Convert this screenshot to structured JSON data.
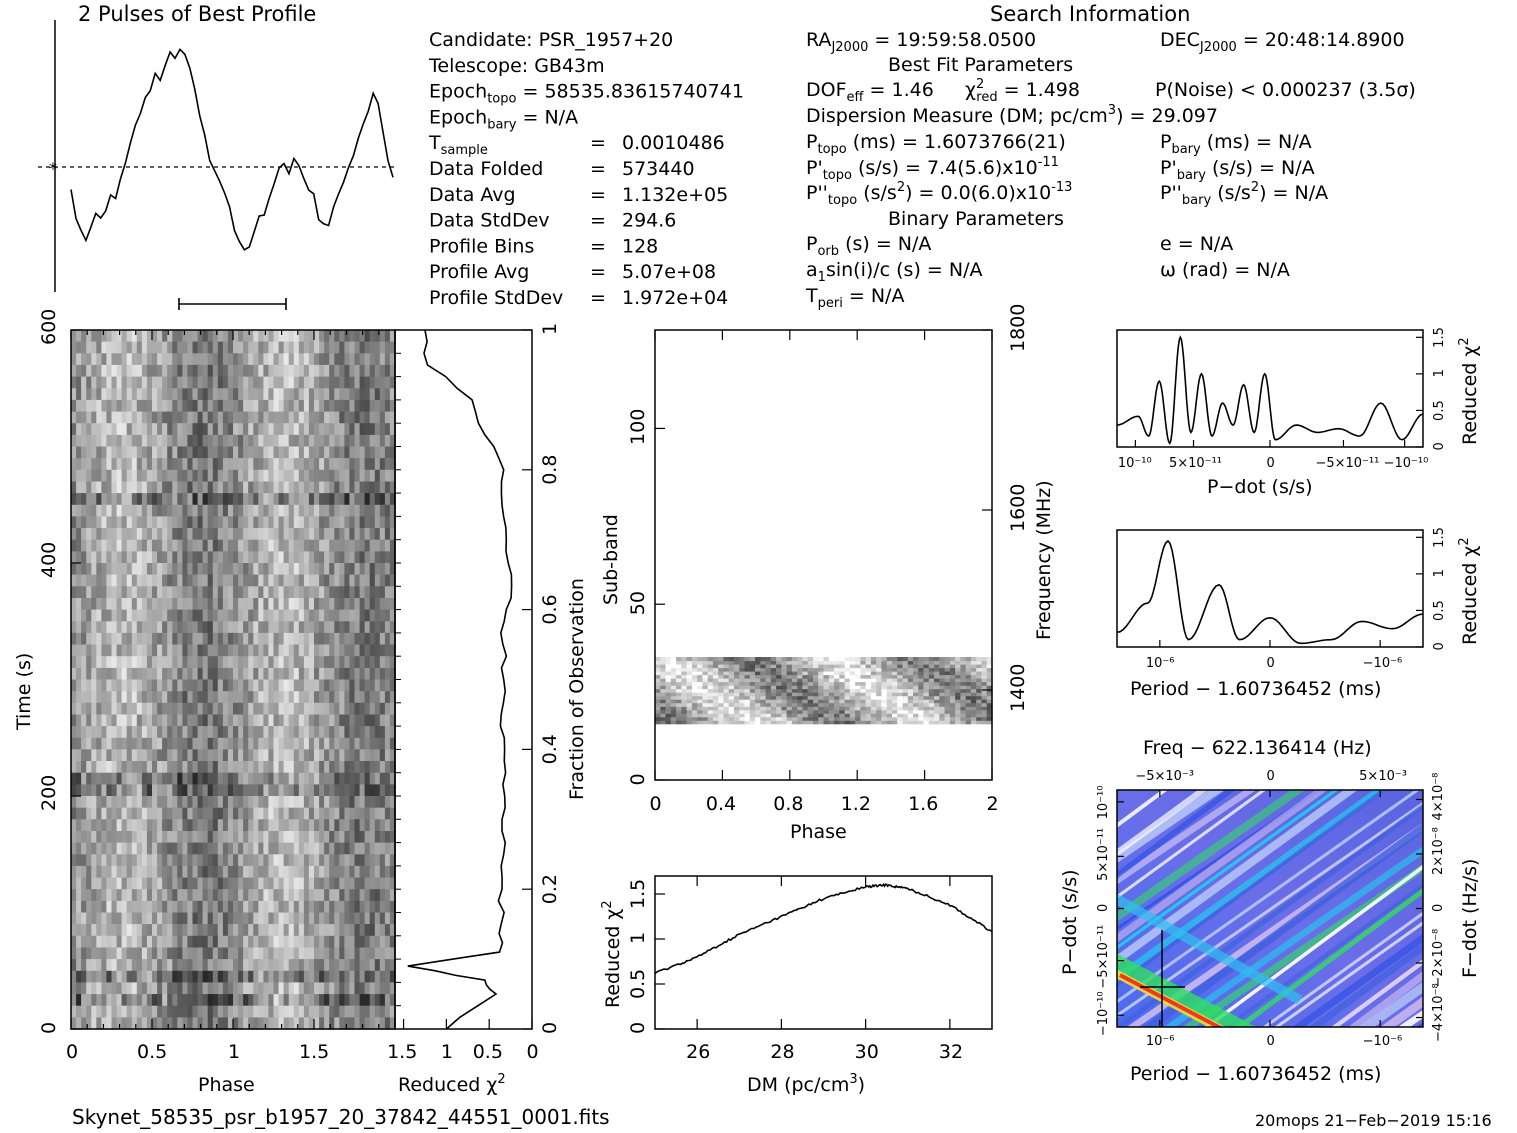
{
  "profile": {
    "title": "2 Pulses of Best Profile",
    "values": [
      0.38,
      0.26,
      0.2,
      0.16,
      0.22,
      0.28,
      0.25,
      0.3,
      0.36,
      0.34,
      0.42,
      0.5,
      0.58,
      0.64,
      0.7,
      0.76,
      0.8,
      0.86,
      0.84,
      0.9,
      0.95,
      0.92,
      0.98,
      0.96,
      0.88,
      0.8,
      0.7,
      0.6,
      0.5,
      0.46,
      0.42,
      0.36,
      0.3,
      0.22,
      0.16,
      0.12,
      0.14,
      0.2,
      0.26,
      0.28,
      0.34,
      0.4,
      0.46,
      0.5,
      0.44,
      0.52,
      0.48,
      0.42,
      0.38,
      0.36,
      0.26,
      0.24,
      0.22,
      0.3,
      0.36,
      0.4,
      0.46,
      0.52,
      0.6,
      0.66,
      0.72,
      0.78,
      0.74,
      0.62,
      0.5,
      0.44
    ],
    "scale": "0 0.5 1"
  },
  "info": {
    "title": "Search Information",
    "col1": [
      {
        "label": "Candidate:  ",
        "value": "PSR_1957+20"
      },
      {
        "label": "Telescope:  ",
        "value": "GB43m"
      },
      {
        "label": "Epoch",
        "sub": "topo",
        "value": " = 58535.83615740741"
      },
      {
        "label": "Epoch",
        "sub": "bary",
        "value": " = N/A"
      },
      {
        "label": "T",
        "sub": "sample",
        "eq": "=",
        "value": "0.0010486"
      },
      {
        "label": "Data Folded",
        "eq": "=",
        "value": "573440"
      },
      {
        "label": "Data Avg",
        "eq": "=",
        "value": "1.132e+05"
      },
      {
        "label": "Data StdDev",
        "eq": "=",
        "value": "294.6"
      },
      {
        "label": "Profile Bins",
        "eq": "=",
        "value": "128"
      },
      {
        "label": "Profile Avg",
        "eq": "=",
        "value": "5.07e+08"
      },
      {
        "label": "Profile StdDev",
        "eq": "=",
        "value": "1.972e+04"
      }
    ],
    "ra": "RA",
    "ra_sub": "J2000",
    "ra_value": " = 19:59:58.0500",
    "dec": "DEC",
    "dec_sub": "J2000",
    "dec_value": " = 20:48:14.8900",
    "best_fit_title": "Best Fit Parameters",
    "dof": "DOF",
    "dof_sub": "eff",
    "dof_value": " = 1.46",
    "chi": "χ",
    "chi_sup": "2",
    "chi_sub": "red",
    "chi_value": " = 1.498",
    "pnoise": "P(Noise) < 0.000237   (3.5σ)",
    "dm_line": "Dispersion Measure (DM; pc/cm",
    "dm_sup": "3",
    "dm_value": ") = 29.097",
    "ptopo": "P",
    "ptopo_sub": "topo",
    "ptopo_value": " (ms) =  1.6073766(21)",
    "pdtopo": "P'",
    "pdtopo_sub": "topo",
    "pdtopo_value": " (s/s) =  7.4(5.6)x10",
    "pdtopo_exp": "-11",
    "pddtopo": "P''",
    "pddtopo_sub": "topo",
    "pddtopo_value": " (s/s",
    "pddtopo_sup": "2",
    "pddtopo_value2": ") = 0.0(6.0)x10",
    "pddtopo_exp": "-13",
    "pbary": "P",
    "pbary_sub": "bary",
    "pbary_value": " (ms) = N/A",
    "pdbary": "P'",
    "pdbary_sub": "bary",
    "pdbary_value": " (s/s) = N/A",
    "pddbary": "P''",
    "pddbary_sub": "bary",
    "pddbary_value": " (s/s",
    "pddbary_sup": "2",
    "pddbary_value2": ") = N/A",
    "binary_title": "Binary Parameters",
    "porb": "P",
    "porb_sub": "orb",
    "porb_value": " (s) = N/A",
    "asini": "a",
    "asini_sub": "1",
    "asini_value": "sin(i)/c (s) = N/A",
    "tperi": "T",
    "tperi_sub": "peri",
    "tperi_value": " = N/A",
    "ecc": "e = N/A",
    "omega": "ω (rad) = N/A"
  },
  "time_phase": {
    "ylabel": "Time (s)",
    "xlabel": "Phase",
    "xticks": [
      "0",
      "0.5",
      "1",
      "1.5"
    ],
    "yticks": [
      "0",
      "200",
      "400",
      "600"
    ]
  },
  "redchi_time": {
    "xlabel": "Reduced χ",
    "xlabel_sup": "2",
    "xticks": [
      "1.5",
      "1",
      "0.5",
      "0"
    ],
    "right_label": "Fraction of Observation",
    "right_ticks": [
      "0",
      "0.2",
      "0.4",
      "0.6",
      "0.8",
      "1"
    ]
  },
  "subband": {
    "ylabel": "Sub-band",
    "xlabel": "Phase",
    "xticks": [
      "0",
      "0.4",
      "0.8",
      "1.2",
      "1.6",
      "2"
    ],
    "yticks": [
      "0",
      "50",
      "100"
    ],
    "right_label": "Frequency (MHz)",
    "right_ticks": [
      "1400",
      "1600",
      "1800"
    ]
  },
  "dm_curve": {
    "ylabel": "Reduced χ",
    "ylabel_sup": "2",
    "xlabel": "DM (pc/cm",
    "xlabel_sup": "3",
    "xlabel_end": ")",
    "xticks": [
      "26",
      "28",
      "30",
      "32"
    ],
    "yticks": [
      "0",
      "0.5",
      "1",
      "1.5"
    ]
  },
  "pdot_curve": {
    "xlabel": "P−dot (s/s)",
    "ylabel": "Reduced χ",
    "ylabel_sup": "2",
    "xticks": [
      "10⁻¹⁰",
      "5×10⁻¹¹",
      "0",
      "−5×10⁻¹¹",
      "−10⁻¹⁰"
    ],
    "yticks": [
      "0",
      "0.5",
      "1",
      "1.5"
    ]
  },
  "period_curve": {
    "xlabel": "Period − 1.60736452 (ms)",
    "ylabel": "Reduced χ",
    "ylabel_sup": "2",
    "xticks": [
      "10⁻⁶",
      "0",
      "−10⁻⁶"
    ],
    "yticks": [
      "0",
      "0.5",
      "1",
      "1.5"
    ]
  },
  "ppdot": {
    "top_label": "Freq − 622.136414 (Hz)",
    "top_ticks": [
      "−5×10⁻³",
      "0",
      "5×10⁻³"
    ],
    "xlabel": "Period − 1.60736452 (ms)",
    "xticks": [
      "10⁻⁶",
      "0",
      "−10⁻⁶"
    ],
    "ylabel": "P−dot (s/s)",
    "yticks": [
      "10⁻¹⁰",
      "5×10⁻¹¹",
      "0",
      "−5×10⁻¹¹",
      "−10⁻¹⁰"
    ],
    "right_label": "F−dot (Hz/s)",
    "right_ticks": [
      "−4×10⁻⁸",
      "−2×10⁻⁸",
      "0",
      "2×10⁻⁸",
      "4×10⁻⁸"
    ]
  },
  "footer": {
    "filename": "Skynet_58535_psr_b1957_20_37842_44551_0001.fits",
    "stamp": "20mops 21−Feb−2019 15:16"
  },
  "chart_data": [
    {
      "type": "line",
      "title": "2 Pulses of Best Profile",
      "xlabel": "",
      "ylabel": "",
      "x_range": [
        0,
        2
      ],
      "note_values": "normalized intensity, two pulses"
    },
    {
      "type": "heatmap",
      "xlabel": "Phase",
      "ylabel": "Time (s)",
      "xlim": [
        0,
        2
      ],
      "ylim": [
        0,
        600
      ]
    },
    {
      "type": "line",
      "xlabel": "Reduced χ2",
      "ylabel": "Fraction of Observation",
      "xlim": [
        1.6,
        0
      ],
      "ylim": [
        0,
        1
      ],
      "y": [
        0,
        0.05,
        0.07,
        0.09,
        0.11,
        0.15,
        0.2,
        0.25,
        0.3,
        0.35,
        0.4,
        0.45,
        0.5,
        0.55,
        0.6,
        0.65,
        0.7,
        0.75,
        0.8,
        0.85,
        0.9,
        0.95,
        1.0
      ],
      "x": [
        1.0,
        0.42,
        0.55,
        1.45,
        0.38,
        0.36,
        0.35,
        0.33,
        0.35,
        0.34,
        0.32,
        0.36,
        0.33,
        0.34,
        0.3,
        0.24,
        0.3,
        0.35,
        0.33,
        0.55,
        0.7,
        1.22,
        1.25
      ]
    },
    {
      "type": "heatmap",
      "xlabel": "Phase",
      "ylabel": "Sub-band",
      "xlim": [
        0,
        2
      ],
      "ylim": [
        0,
        128
      ],
      "filled_rows": [
        16,
        35
      ]
    },
    {
      "type": "line",
      "xlabel": "DM (pc/cm3)",
      "ylabel": "Reduced χ2",
      "xlim": [
        25,
        33
      ],
      "ylim": [
        0,
        1.7
      ],
      "x": [
        25,
        26,
        27,
        28,
        29,
        30,
        30.5,
        31,
        32,
        33
      ],
      "y": [
        0.62,
        0.8,
        1.05,
        1.25,
        1.45,
        1.58,
        1.6,
        1.56,
        1.38,
        1.08
      ]
    },
    {
      "type": "line",
      "xlabel": "P-dot (s/s)",
      "ylabel": "Reduced χ2",
      "ylim": [
        0,
        1.6
      ],
      "x": [
        1.5e-10,
        1.3e-10,
        1.2e-10,
        1.1e-10,
        1e-10,
        9e-11,
        8e-11,
        7e-11,
        6e-11,
        5e-11,
        4e-11,
        3e-11,
        2e-11,
        1e-11,
        0,
        -2e-11,
        -4e-11,
        -6e-11,
        -8e-11,
        -1e-10,
        -1.2e-10,
        -1.4e-10
      ],
      "y": [
        0.3,
        0.42,
        0.15,
        0.9,
        0.05,
        1.5,
        0.2,
        1.0,
        0.15,
        0.6,
        0.3,
        0.85,
        0.2,
        1.0,
        0.1,
        0.3,
        0.2,
        0.25,
        0.15,
        0.6,
        0.1,
        0.45
      ]
    },
    {
      "type": "line",
      "xlabel": "Period − 1.60736452 (ms)",
      "ylabel": "Reduced χ2",
      "ylim": [
        0,
        1.6
      ],
      "x": [
        1.5e-06,
        1.2e-06,
        1e-06,
        8e-07,
        5e-07,
        3e-07,
        0,
        -3e-07,
        -6e-07,
        -9e-07,
        -1.2e-06,
        -1.5e-06
      ],
      "y": [
        0.2,
        0.6,
        1.45,
        0.1,
        0.85,
        0.1,
        0.4,
        0.05,
        0.1,
        0.35,
        0.25,
        0.45
      ]
    },
    {
      "type": "heatmap",
      "xlabel": "Period − 1.60736452 (ms)",
      "ylabel": "P-dot (s/s)",
      "top_label": "Freq − 622.136414 (Hz)",
      "right_label": "F-dot (Hz/s)"
    }
  ]
}
